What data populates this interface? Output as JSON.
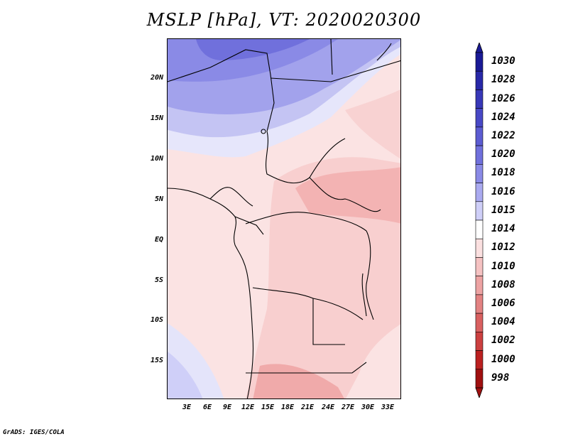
{
  "title": "MSLP [hPa], VT: 2020020300",
  "credit": "GrADS: IGES/COLA",
  "lat_labels": [
    "20N",
    "15N",
    "10N",
    "5N",
    "EQ",
    "5S",
    "10S",
    "15S"
  ],
  "lon_labels": [
    "3E",
    "6E",
    "9E",
    "12E",
    "15E",
    "18E",
    "21E",
    "24E",
    "27E",
    "30E",
    "33E"
  ],
  "colorbar": {
    "labels": [
      "1030",
      "1028",
      "1026",
      "1024",
      "1022",
      "1020",
      "1018",
      "1016",
      "1015",
      "1014",
      "1012",
      "1010",
      "1008",
      "1006",
      "1004",
      "1002",
      "1000",
      "998"
    ],
    "colors": [
      "#1a1a96",
      "#2828a8",
      "#3838b8",
      "#4848c6",
      "#5c5cd2",
      "#7070dc",
      "#8a8ae6",
      "#aaaaf0",
      "#cfcff8",
      "#ffffff",
      "#fbe0e0",
      "#f5c2c2",
      "#eda3a3",
      "#e38282",
      "#d96060",
      "#cc4040",
      "#bb2020",
      "#a01010"
    ]
  }
}
